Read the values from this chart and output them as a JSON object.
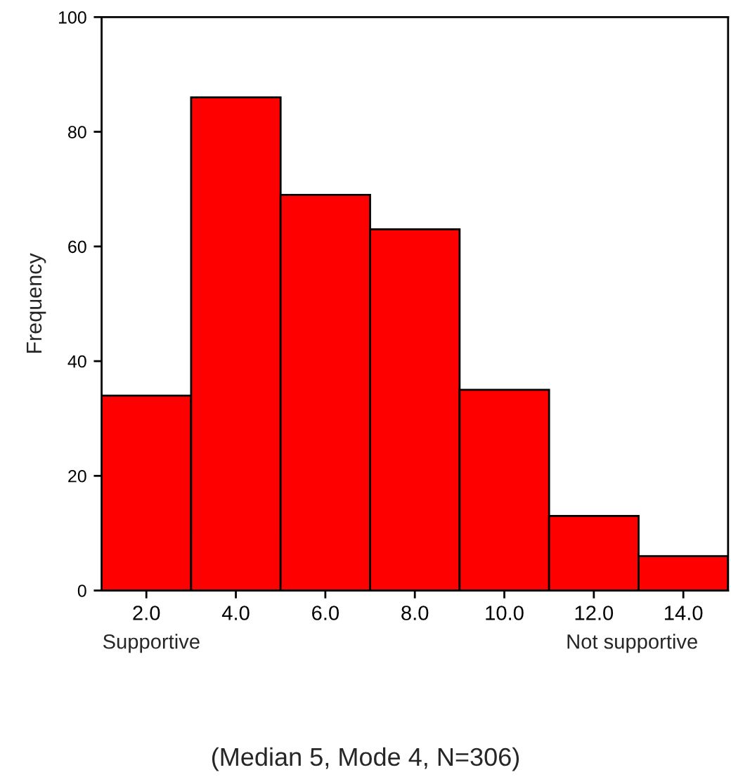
{
  "chart_data": {
    "type": "histogram",
    "ylabel": "Frequency",
    "bins": [
      1,
      3,
      5,
      7,
      9,
      11,
      13,
      15
    ],
    "values": [
      34,
      86,
      69,
      63,
      35,
      13,
      6
    ],
    "color": "#ff0000",
    "xlim": [
      1,
      15
    ],
    "ylim": [
      0,
      100
    ],
    "xticks": [
      {
        "value": 2,
        "label": "2.0"
      },
      {
        "value": 4,
        "label": "4.0"
      },
      {
        "value": 6,
        "label": "6.0"
      },
      {
        "value": 8,
        "label": "8.0"
      },
      {
        "value": 10,
        "label": "10.0"
      },
      {
        "value": 12,
        "label": "12.0"
      },
      {
        "value": 14,
        "label": "14.0"
      }
    ],
    "yticks": [
      0,
      20,
      40,
      60,
      80,
      100
    ],
    "grid": false,
    "annotations": [
      "Supportive",
      "Not supportive",
      "(Median 5, Mode 4, N=306)"
    ]
  }
}
